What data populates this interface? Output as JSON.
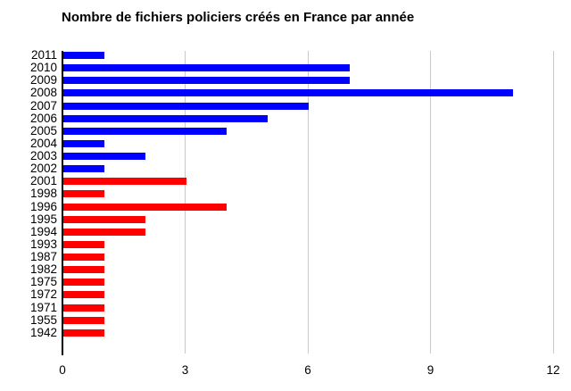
{
  "chart_data": {
    "type": "bar",
    "orientation": "horizontal",
    "title": "Nombre de fichiers policiers créés en France par année",
    "xlabel": "",
    "ylabel": "",
    "xlim": [
      0,
      12
    ],
    "x_ticks": [
      0,
      3,
      6,
      9,
      12
    ],
    "grid": true,
    "legend": "none",
    "colors": {
      "recent": "#0000ff",
      "older": "#ff0000"
    },
    "categories": [
      "2011",
      "2010",
      "2009",
      "2008",
      "2007",
      "2006",
      "2005",
      "2004",
      "2003",
      "2002",
      "2001",
      "1998",
      "1996",
      "1995",
      "1994",
      "1993",
      "1987",
      "1982",
      "1975",
      "1972",
      "1971",
      "1955",
      "1942"
    ],
    "values": [
      1,
      7,
      7,
      11,
      6,
      5,
      4,
      1,
      2,
      1,
      3,
      1,
      4,
      2,
      2,
      1,
      1,
      1,
      1,
      1,
      1,
      1,
      1
    ],
    "bars": [
      {
        "year": "2011",
        "value": 1,
        "group": "recent"
      },
      {
        "year": "2010",
        "value": 7,
        "group": "recent"
      },
      {
        "year": "2009",
        "value": 7,
        "group": "recent"
      },
      {
        "year": "2008",
        "value": 11,
        "group": "recent"
      },
      {
        "year": "2007",
        "value": 6,
        "group": "recent"
      },
      {
        "year": "2006",
        "value": 5,
        "group": "recent"
      },
      {
        "year": "2005",
        "value": 4,
        "group": "recent"
      },
      {
        "year": "2004",
        "value": 1,
        "group": "recent"
      },
      {
        "year": "2003",
        "value": 2,
        "group": "recent"
      },
      {
        "year": "2002",
        "value": 1,
        "group": "recent"
      },
      {
        "year": "2001",
        "value": 3,
        "group": "older"
      },
      {
        "year": "1998",
        "value": 1,
        "group": "older"
      },
      {
        "year": "1996",
        "value": 4,
        "group": "older"
      },
      {
        "year": "1995",
        "value": 2,
        "group": "older"
      },
      {
        "year": "1994",
        "value": 2,
        "group": "older"
      },
      {
        "year": "1993",
        "value": 1,
        "group": "older"
      },
      {
        "year": "1987",
        "value": 1,
        "group": "older"
      },
      {
        "year": "1982",
        "value": 1,
        "group": "older"
      },
      {
        "year": "1975",
        "value": 1,
        "group": "older"
      },
      {
        "year": "1972",
        "value": 1,
        "group": "older"
      },
      {
        "year": "1971",
        "value": 1,
        "group": "older"
      },
      {
        "year": "1955",
        "value": 1,
        "group": "older"
      },
      {
        "year": "1942",
        "value": 1,
        "group": "older"
      }
    ]
  }
}
